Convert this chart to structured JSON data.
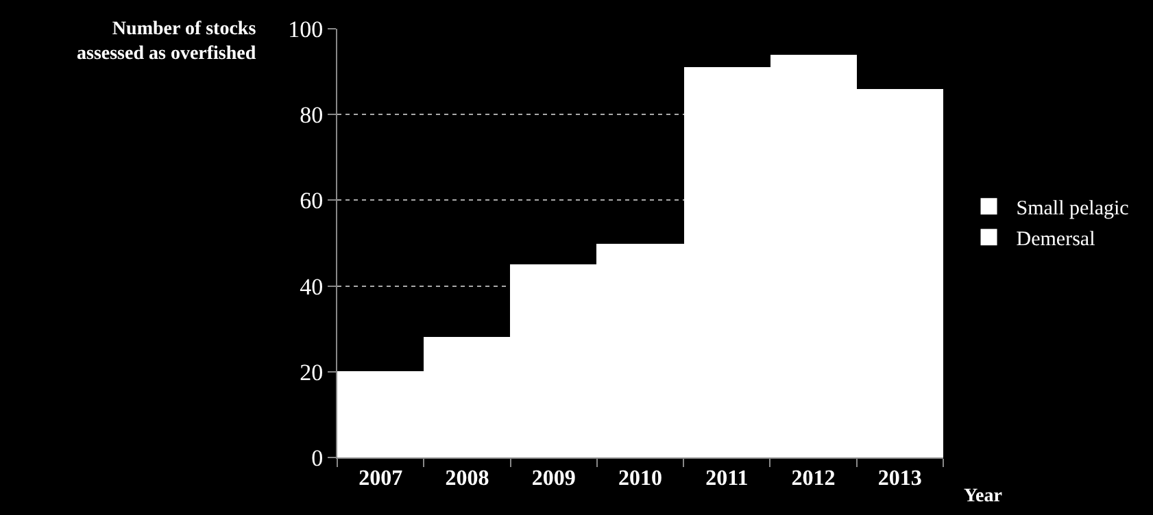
{
  "chart_data": {
    "type": "bar",
    "stacked": true,
    "ylabel": "Number of stocks\nassessed as overfished",
    "xlabel": "Year",
    "categories": [
      "2007",
      "2008",
      "2009",
      "2010",
      "2011",
      "2012",
      "2013"
    ],
    "series": [
      {
        "name": "Demersal",
        "color": "#ffffff",
        "values": [
          20,
          28,
          45,
          50,
          91,
          94,
          86
        ]
      },
      {
        "name": "Small pelagic",
        "color": "#ffffff",
        "values": [
          null,
          null,
          null,
          null,
          null,
          null,
          null
        ]
      }
    ],
    "ylim": [
      0,
      100
    ],
    "yticks": [
      0,
      20,
      40,
      60,
      80,
      100
    ],
    "grid": "y",
    "legend": "right"
  }
}
